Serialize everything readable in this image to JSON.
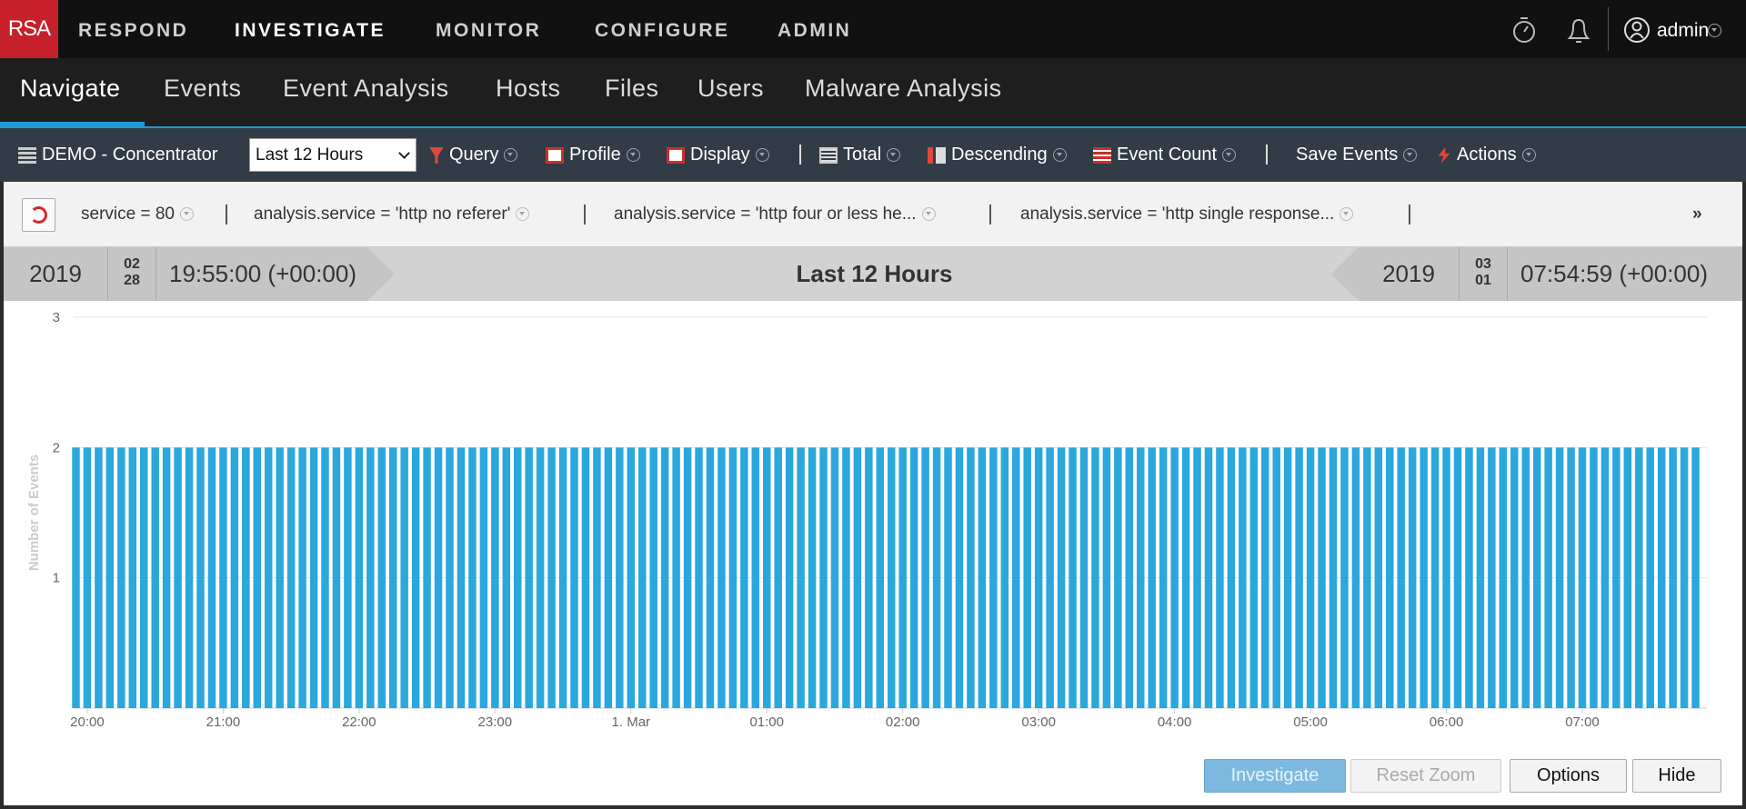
{
  "top_nav": {
    "logo": "RSA",
    "items": [
      "RESPOND",
      "INVESTIGATE",
      "MONITOR",
      "CONFIGURE",
      "ADMIN"
    ],
    "user": "admin"
  },
  "sub_nav": {
    "tabs": [
      "Navigate",
      "Events",
      "Event Analysis",
      "Hosts",
      "Files",
      "Users",
      "Malware Analysis"
    ]
  },
  "toolbar": {
    "service": "DEMO - Concentrator",
    "time_select": "Last 12 Hours",
    "items": [
      "Query",
      "Profile",
      "Display",
      "Total",
      "Descending",
      "Event Count",
      "Save Events",
      "Actions"
    ]
  },
  "filters": {
    "items": [
      "service = 80",
      "analysis.service = 'http no referer'",
      "analysis.service = 'http four or less he...",
      "analysis.service = 'http single response..."
    ],
    "more": "»"
  },
  "time_range": {
    "label": "Last 12 Hours",
    "start": {
      "year": "2019",
      "month": "02",
      "day": "28",
      "time": "19:55:00 (+00:00)"
    },
    "end": {
      "year": "2019",
      "month": "03",
      "day": "01",
      "time": "07:54:59 (+00:00)"
    }
  },
  "buttons": [
    "Investigate",
    "Reset Zoom",
    "Options",
    "Hide"
  ],
  "chart_data": {
    "type": "bar",
    "y_label": "Number of Events",
    "color": "#2aa7dc",
    "x": [
      1195,
      1200,
      1205,
      1210,
      1215,
      1220,
      1225,
      1230,
      1235,
      1240,
      1245,
      1250,
      1255,
      1260,
      1265,
      1270,
      1275,
      1280,
      1285,
      1290,
      1295,
      1300,
      1305,
      1310,
      1315,
      1320,
      1325,
      1330,
      1335,
      1340,
      1345,
      1350,
      1355,
      1360,
      1365,
      1370,
      1375,
      1380,
      1385,
      1390,
      1395,
      1400,
      1405,
      1410,
      1415,
      1420,
      1425,
      1430,
      1435,
      1440,
      1445,
      1450,
      1455,
      1460,
      1465,
      1470,
      1475,
      1480,
      1485,
      1490,
      1495,
      1500,
      1505,
      1510,
      1515,
      1520,
      1525,
      1530,
      1535,
      1540,
      1545,
      1550,
      1555,
      1560,
      1565,
      1570,
      1575,
      1580,
      1585,
      1590,
      1595,
      1600,
      1605,
      1610,
      1615,
      1620,
      1625,
      1630,
      1635,
      1640,
      1645,
      1650,
      1655,
      1660,
      1665,
      1670,
      1675,
      1680,
      1685,
      1690,
      1695,
      1700,
      1705,
      1710,
      1715,
      1720,
      1725,
      1730,
      1735,
      1740,
      1745,
      1750,
      1755,
      1760,
      1765,
      1770,
      1775,
      1780,
      1785,
      1790,
      1795,
      1800,
      1805,
      1810,
      1815,
      1820,
      1825,
      1830,
      1835,
      1840,
      1845,
      1850,
      1855,
      1860,
      1865,
      1870,
      1875,
      1880,
      1885,
      1890,
      1895,
      1900,
      1905,
      1910
    ],
    "values": [
      2,
      2,
      2,
      2,
      2,
      2,
      2,
      2,
      2,
      2,
      2,
      2,
      2,
      2,
      2,
      2,
      2,
      2,
      2,
      2,
      2,
      2,
      2,
      2,
      2,
      2,
      2,
      2,
      2,
      2,
      2,
      2,
      2,
      2,
      2,
      2,
      2,
      2,
      2,
      2,
      2,
      2,
      2,
      2,
      2,
      2,
      2,
      2,
      2,
      2,
      2,
      2,
      2,
      2,
      2,
      2,
      2,
      2,
      2,
      2,
      2,
      2,
      2,
      2,
      2,
      2,
      2,
      2,
      2,
      2,
      2,
      2,
      2,
      2,
      2,
      2,
      2,
      2,
      2,
      2,
      2,
      2,
      2,
      2,
      2,
      2,
      2,
      2,
      2,
      2,
      2,
      2,
      2,
      2,
      2,
      2,
      2,
      2,
      2,
      2,
      2,
      2,
      2,
      2,
      2,
      2,
      2,
      2,
      2,
      2,
      2,
      2,
      2,
      2,
      2,
      2,
      2,
      2,
      2,
      2,
      2,
      2,
      2,
      2,
      2,
      2,
      2,
      2,
      2,
      2,
      2,
      2,
      2,
      2,
      2,
      2,
      2,
      2,
      2,
      2,
      2,
      2,
      2,
      2
    ],
    "xlim": [
      1194,
      1915
    ],
    "xticks": [
      {
        "value": 1200,
        "label": "20:00"
      },
      {
        "value": 1260,
        "label": "21:00"
      },
      {
        "value": 1320,
        "label": "22:00"
      },
      {
        "value": 1380,
        "label": "23:00"
      },
      {
        "value": 1440,
        "label": "1. Mar"
      },
      {
        "value": 1500,
        "label": "01:00"
      },
      {
        "value": 1560,
        "label": "02:00"
      },
      {
        "value": 1620,
        "label": "03:00"
      },
      {
        "value": 1680,
        "label": "04:00"
      },
      {
        "value": 1740,
        "label": "05:00"
      },
      {
        "value": 1800,
        "label": "06:00"
      },
      {
        "value": 1860,
        "label": "07:00"
      }
    ],
    "ylim": [
      0,
      3
    ],
    "yticks": [
      1,
      2,
      3
    ],
    "grid": true
  }
}
